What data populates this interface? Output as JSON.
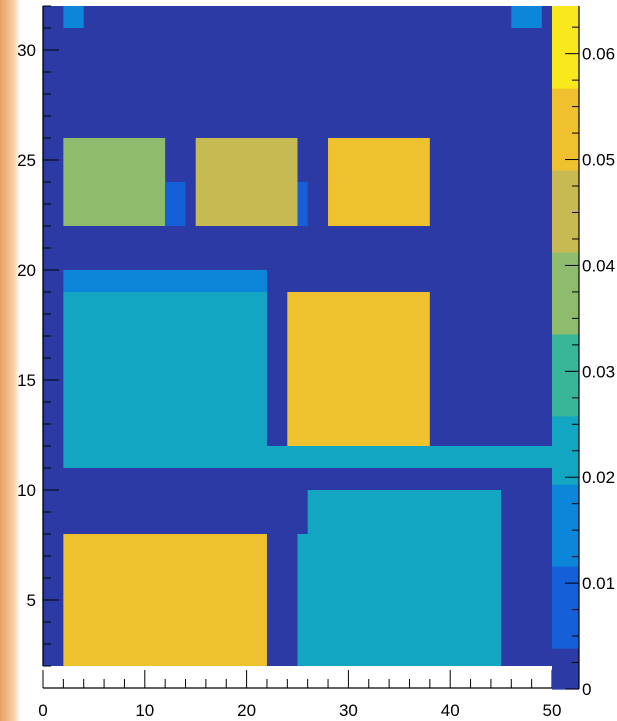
{
  "chart_data": {
    "type": "heatmap",
    "title": "",
    "xlabel": "",
    "ylabel": "",
    "xlim": [
      0,
      50
    ],
    "ylim": [
      2,
      32
    ],
    "x_ticks": [
      "0",
      "10",
      "20",
      "30",
      "40",
      "50"
    ],
    "y_ticks": [
      "5",
      "10",
      "15",
      "20",
      "25",
      "30"
    ],
    "colorbar": {
      "range": [
        0,
        0.06
      ],
      "ticks": [
        "0",
        "0.01",
        "0.02",
        "0.03",
        "0.04",
        "0.05",
        "0.06"
      ],
      "palette": [
        "#2c3aa6",
        "#1560d8",
        "#0c86d8",
        "#13a6c3",
        "#39b598",
        "#8dbd6c",
        "#c8ba52",
        "#f0c12f",
        "#f8e81c"
      ]
    },
    "background_value": 0.0,
    "regions": [
      {
        "x": [
          2,
          4
        ],
        "y": [
          31,
          32
        ],
        "value": 0.018
      },
      {
        "x": [
          46,
          49
        ],
        "y": [
          31,
          32
        ],
        "value": 0.018
      },
      {
        "x": [
          2,
          12
        ],
        "y": [
          22,
          26
        ],
        "value": 0.035
      },
      {
        "x": [
          12,
          14
        ],
        "y": [
          22,
          24
        ],
        "value": 0.01
      },
      {
        "x": [
          15,
          25
        ],
        "y": [
          22,
          26
        ],
        "value": 0.043
      },
      {
        "x": [
          25,
          26
        ],
        "y": [
          22,
          24
        ],
        "value": 0.01
      },
      {
        "x": [
          28,
          38
        ],
        "y": [
          22,
          26
        ],
        "value": 0.051
      },
      {
        "x": [
          2,
          22
        ],
        "y": [
          19,
          20
        ],
        "value": 0.012
      },
      {
        "x": [
          2,
          22
        ],
        "y": [
          12,
          19
        ],
        "value": 0.019
      },
      {
        "x": [
          24,
          38
        ],
        "y": [
          12,
          19
        ],
        "value": 0.05
      },
      {
        "x": [
          2,
          50
        ],
        "y": [
          11,
          12
        ],
        "value": 0.021
      },
      {
        "x": [
          2,
          22
        ],
        "y": [
          2,
          8
        ],
        "value": 0.054
      },
      {
        "x": [
          26,
          45
        ],
        "y": [
          8,
          10
        ],
        "value": 0.02
      },
      {
        "x": [
          25,
          45
        ],
        "y": [
          2,
          8
        ],
        "value": 0.025
      }
    ]
  }
}
